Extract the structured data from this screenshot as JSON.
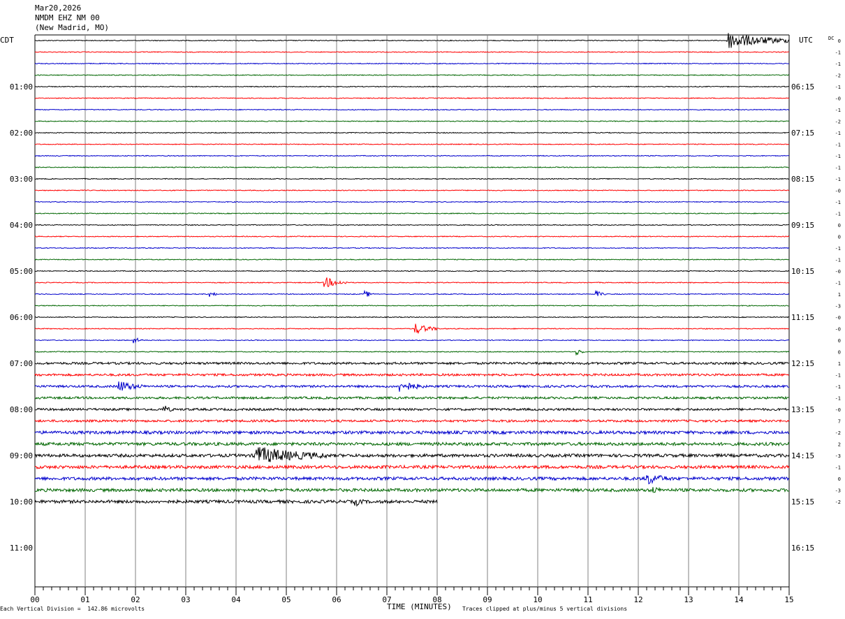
{
  "header": {
    "date": "Mar20,2026",
    "station": "NMDM EHZ NM 00",
    "location": "(New Madrid, MO)"
  },
  "left_axis_label": "CDT",
  "right_axis_label": "UTC",
  "dc_label": "DC",
  "chart_data": {
    "type": "line",
    "title": "",
    "xlabel": "TIME (MINUTES)",
    "xlim": [
      0,
      15
    ],
    "x_ticks": [
      "00",
      "01",
      "02",
      "03",
      "04",
      "05",
      "06",
      "07",
      "08",
      "09",
      "10",
      "11",
      "12",
      "13",
      "14",
      "15"
    ],
    "left_hour_labels": [
      "01:00",
      "02:00",
      "03:00",
      "04:00",
      "05:00",
      "06:00",
      "07:00",
      "08:00",
      "09:00",
      "10:00",
      "11:00"
    ],
    "right_hour_labels": [
      "06:15",
      "07:15",
      "08:15",
      "09:15",
      "10:15",
      "11:15",
      "12:15",
      "13:15",
      "14:15",
      "15:15",
      "16:15"
    ],
    "trace_colors": [
      "#000000",
      "#ff0000",
      "#0000cc",
      "#006600"
    ],
    "row_count": 48,
    "rows_drawn": 41,
    "last_row_end_minute": 8,
    "dc_offsets": [
      "0",
      "-1",
      "-1",
      "-2",
      "-1",
      "-0",
      "-1",
      "-2",
      "-1",
      "-1",
      "-1",
      "-1",
      "-1",
      "-0",
      "-1",
      "-1",
      "0",
      "0",
      "-1",
      "-1",
      "-0",
      "-1",
      "1",
      "-3",
      "-0",
      "-0",
      "0",
      "0",
      "1",
      "-1",
      "-1",
      "-1",
      "-0",
      "7",
      "-2",
      "2",
      "-3",
      "-1",
      "0",
      "-3",
      "-2"
    ],
    "events": [
      {
        "row": 0,
        "minute": 13.8,
        "amplitude": "large"
      },
      {
        "row": 21,
        "minute": 5.8,
        "amplitude": "medium"
      },
      {
        "row": 22,
        "minute": 3.5,
        "amplitude": "small"
      },
      {
        "row": 22,
        "minute": 6.6,
        "amplitude": "small"
      },
      {
        "row": 22,
        "minute": 11.2,
        "amplitude": "small"
      },
      {
        "row": 25,
        "minute": 7.6,
        "amplitude": "medium"
      },
      {
        "row": 26,
        "minute": 2.0,
        "amplitude": "small"
      },
      {
        "row": 27,
        "minute": 10.8,
        "amplitude": "small"
      },
      {
        "row": 30,
        "minute": 1.7,
        "amplitude": "medium"
      },
      {
        "row": 30,
        "minute": 7.3,
        "amplitude": "medium"
      },
      {
        "row": 32,
        "minute": 2.6,
        "amplitude": "small"
      },
      {
        "row": 36,
        "minute": 4.4,
        "amplitude": "large"
      },
      {
        "row": 38,
        "minute": 12.2,
        "amplitude": "medium"
      },
      {
        "row": 39,
        "minute": 12.3,
        "amplitude": "small"
      },
      {
        "row": 40,
        "minute": 6.4,
        "amplitude": "small"
      }
    ]
  },
  "footer": {
    "scale_note": "Each Vertical Division =  142.86 microvolts",
    "clip_note": "Traces clipped at plus/minus 5 vertical divisions"
  }
}
